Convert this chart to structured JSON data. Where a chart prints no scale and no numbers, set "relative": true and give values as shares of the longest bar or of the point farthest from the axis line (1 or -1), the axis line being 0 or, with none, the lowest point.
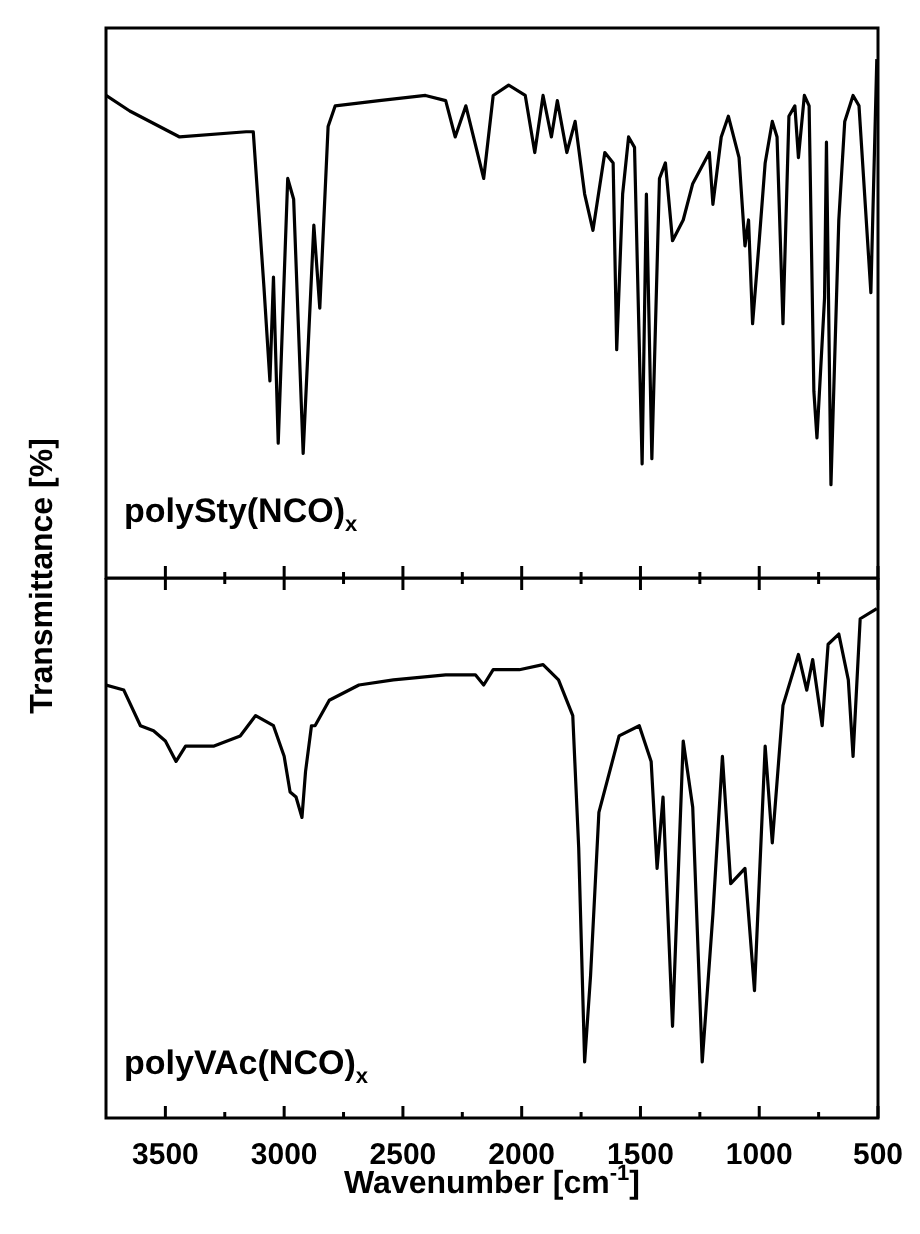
{
  "chart_data": [
    {
      "type": "line",
      "relative": true,
      "ylabel": "Transmittance [%]",
      "tick_labels": false,
      "xlim": [
        3750,
        500
      ],
      "xticks": [
        3500,
        {
          "value": 3250,
          "label": null
        },
        3000,
        {
          "value": 2750,
          "label": null
        },
        2500,
        {
          "value": 2250,
          "label": null
        },
        2000,
        {
          "value": 1750,
          "label": null
        },
        1500,
        {
          "value": 1250,
          "label": null
        },
        1000,
        {
          "value": 750,
          "label": null
        },
        500
      ],
      "annotations": [
        "polySty(NCO)$_{x}$"
      ],
      "x": [
        3750,
        3650,
        3440,
        3160,
        3130,
        3085,
        3060,
        3045,
        3025,
        2985,
        2960,
        2920,
        2875,
        2850,
        2815,
        2785,
        2600,
        2405,
        2320,
        2280,
        2235,
        2160,
        2120,
        2055,
        1985,
        1945,
        1910,
        1875,
        1850,
        1810,
        1775,
        1735,
        1700,
        1650,
        1615,
        1600,
        1575,
        1550,
        1525,
        1493,
        1475,
        1452,
        1420,
        1395,
        1365,
        1320,
        1280,
        1210,
        1195,
        1160,
        1130,
        1085,
        1060,
        1045,
        1028,
        1000,
        975,
        945,
        925,
        900,
        875,
        850,
        835,
        810,
        790,
        770,
        757,
        725,
        717,
        698,
        665,
        640,
        605,
        580,
        530,
        505
      ],
      "series": [
        {
          "color": "#000000",
          "values": [
            0.93,
            0.9,
            0.85,
            0.86,
            0.86,
            0.56,
            0.38,
            0.58,
            0.26,
            0.77,
            0.73,
            0.24,
            0.68,
            0.52,
            0.87,
            0.91,
            0.92,
            0.93,
            0.92,
            0.85,
            0.91,
            0.77,
            0.93,
            0.95,
            0.93,
            0.82,
            0.93,
            0.85,
            0.92,
            0.82,
            0.88,
            0.74,
            0.67,
            0.82,
            0.8,
            0.44,
            0.74,
            0.85,
            0.83,
            0.22,
            0.74,
            0.23,
            0.77,
            0.8,
            0.65,
            0.69,
            0.76,
            0.82,
            0.72,
            0.85,
            0.89,
            0.81,
            0.64,
            0.69,
            0.49,
            0.65,
            0.8,
            0.88,
            0.85,
            0.49,
            0.89,
            0.91,
            0.81,
            0.93,
            0.91,
            0.36,
            0.27,
            0.54,
            0.84,
            0.18,
            0.69,
            0.88,
            0.93,
            0.91,
            0.55,
            1
          ]
        }
      ]
    },
    {
      "type": "line",
      "relative": true,
      "xlabel": "Wavenumber [cm$^{-1}$]",
      "tick_labels": "x",
      "xlim": [
        3750,
        500
      ],
      "xticks": [
        3500,
        {
          "value": 3250,
          "label": null
        },
        3000,
        {
          "value": 2750,
          "label": null
        },
        2500,
        {
          "value": 2250,
          "label": null
        },
        2000,
        {
          "value": 1750,
          "label": null
        },
        1500,
        {
          "value": 1250,
          "label": null
        },
        1000,
        {
          "value": 750,
          "label": null
        },
        500
      ],
      "annotations": [
        "polyVAc(NCO)$_{x}$"
      ],
      "x": [
        3750,
        3675,
        3605,
        3550,
        3500,
        3455,
        3415,
        3295,
        3185,
        3120,
        3045,
        3000,
        2975,
        2950,
        2925,
        2910,
        2885,
        2870,
        2810,
        2685,
        2540,
        2320,
        2195,
        2160,
        2120,
        2010,
        1910,
        1845,
        1785,
        1760,
        1735,
        1710,
        1675,
        1590,
        1505,
        1455,
        1430,
        1405,
        1365,
        1320,
        1280,
        1240,
        1195,
        1155,
        1120,
        1060,
        1020,
        975,
        945,
        900,
        835,
        800,
        775,
        735,
        710,
        665,
        625,
        605,
        575,
        505
      ],
      "series": [
        {
          "color": "#000000",
          "values": [
            0.85,
            0.84,
            0.77,
            0.76,
            0.74,
            0.7,
            0.73,
            0.73,
            0.75,
            0.79,
            0.77,
            0.71,
            0.64,
            0.63,
            0.59,
            0.68,
            0.77,
            0.77,
            0.82,
            0.85,
            0.86,
            0.87,
            0.87,
            0.85,
            0.88,
            0.88,
            0.89,
            0.86,
            0.79,
            0.53,
            0.11,
            0.28,
            0.6,
            0.75,
            0.77,
            0.7,
            0.49,
            0.63,
            0.18,
            0.74,
            0.61,
            0.11,
            0.4,
            0.71,
            0.46,
            0.49,
            0.25,
            0.73,
            0.54,
            0.81,
            0.91,
            0.84,
            0.9,
            0.77,
            0.93,
            0.95,
            0.86,
            0.71,
            0.98,
            1
          ]
        }
      ]
    }
  ]
}
